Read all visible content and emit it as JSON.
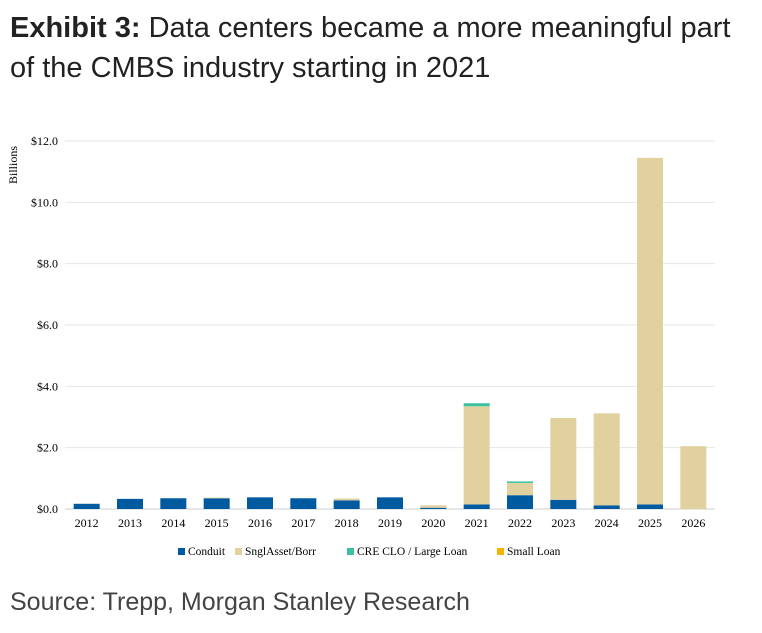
{
  "title_bold": "Exhibit 3:",
  "title_rest": " Data centers became a more meaningful part of the CMBS industry starting in 2021",
  "source": "Source: Trepp, Morgan Stanley Research",
  "chart_data": {
    "type": "bar",
    "stacked": true,
    "ylabel": "Billions",
    "ylim": [
      0,
      12
    ],
    "yticks": [
      "$0.0",
      "$2.0",
      "$4.0",
      "$6.0",
      "$8.0",
      "$10.0",
      "$12.0"
    ],
    "grid": true,
    "legend_position": "bottom",
    "categories": [
      "2012",
      "2013",
      "2014",
      "2015",
      "2016",
      "2017",
      "2018",
      "2019",
      "2020",
      "2021",
      "2022",
      "2023",
      "2024",
      "2025",
      "2026"
    ],
    "series": [
      {
        "name": "Conduit",
        "color": "#005aa0",
        "values": [
          0.17,
          0.33,
          0.35,
          0.35,
          0.38,
          0.35,
          0.28,
          0.38,
          0.04,
          0.15,
          0.45,
          0.3,
          0.12,
          0.15,
          0
        ]
      },
      {
        "name": "SnglAsset/Borr",
        "color": "#e0d19f",
        "values": [
          0,
          0,
          0,
          0.02,
          0,
          0,
          0.06,
          0,
          0.08,
          3.2,
          0.4,
          2.67,
          3.0,
          11.3,
          2.05
        ]
      },
      {
        "name": "CRE CLO / Large Loan",
        "color": "#3cc1a0",
        "values": [
          0,
          0,
          0,
          0,
          0,
          0,
          0,
          0,
          0,
          0.1,
          0.05,
          0,
          0,
          0,
          0
        ]
      },
      {
        "name": "Small Loan",
        "color": "#f5b400",
        "values": [
          0,
          0,
          0,
          0,
          0,
          0,
          0,
          0,
          0,
          0,
          0,
          0,
          0,
          0,
          0
        ]
      }
    ]
  }
}
